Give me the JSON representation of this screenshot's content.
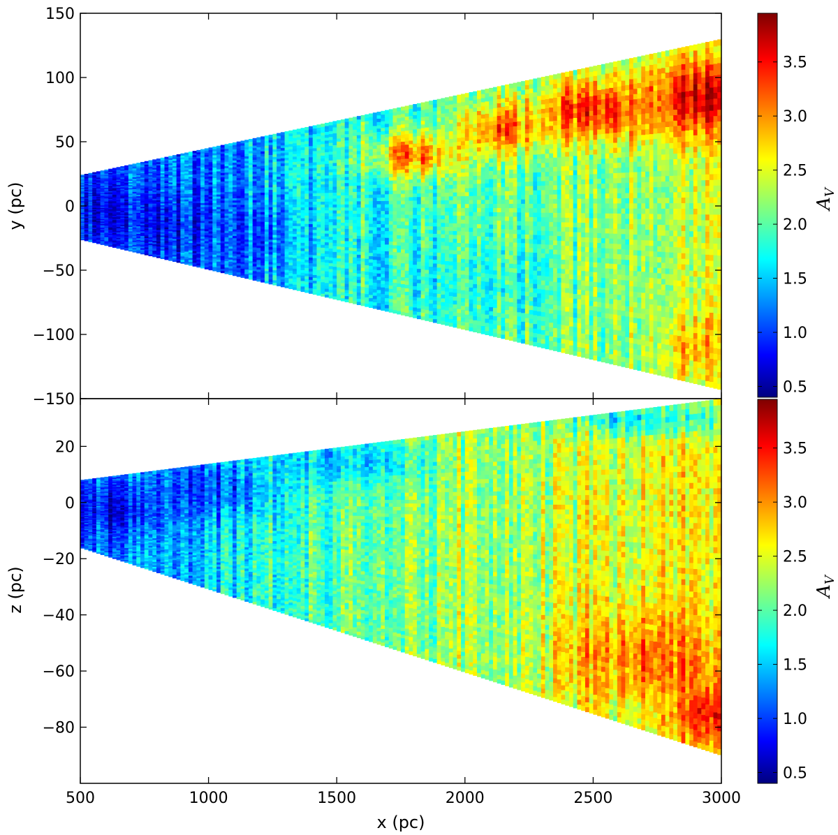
{
  "chart_data": [
    {
      "type": "heatmap",
      "panel": "top",
      "xlabel": "",
      "ylabel": "y (pc)",
      "xlim": [
        500,
        3000
      ],
      "ylim": [
        -150,
        150
      ],
      "xticks": [
        500,
        1000,
        1500,
        2000,
        2500,
        3000
      ],
      "yticks": [
        150,
        100,
        50,
        0,
        -50,
        -100,
        -150
      ],
      "ytick_labels": [
        "150",
        "100",
        "50",
        "0",
        "−50",
        "−100",
        "−150"
      ],
      "wedge": {
        "x": [
          500,
          3000
        ],
        "upper": [
          24,
          130
        ],
        "lower": [
          -26,
          -143
        ]
      },
      "zones": [
        {
          "x": 600,
          "y": -5,
          "value": 0.7,
          "sx": 140,
          "sy": 22
        },
        {
          "x": 850,
          "y": -15,
          "value": 0.8,
          "sx": 200,
          "sy": 25
        },
        {
          "x": 1150,
          "y": -25,
          "value": 1.2,
          "sx": 200,
          "sy": 30
        },
        {
          "x": 1800,
          "y": 40,
          "value": 3.1,
          "sx": 180,
          "sy": 18
        },
        {
          "x": 2150,
          "y": 60,
          "value": 3.2,
          "sx": 150,
          "sy": 20
        },
        {
          "x": 2500,
          "y": 75,
          "value": 3.4,
          "sx": 250,
          "sy": 25
        },
        {
          "x": 2900,
          "y": 85,
          "value": 3.6,
          "sx": 200,
          "sy": 30
        },
        {
          "x": 2000,
          "y": -60,
          "value": 1.8,
          "sx": 300,
          "sy": 30
        },
        {
          "x": 2900,
          "y": -110,
          "value": 2.8,
          "sx": 150,
          "sy": 25
        }
      ],
      "background": [
        {
          "x": 500,
          "value": 1.0
        },
        {
          "x": 1000,
          "value": 1.3
        },
        {
          "x": 1500,
          "value": 1.8
        },
        {
          "x": 2000,
          "value": 2.0
        },
        {
          "x": 2500,
          "value": 2.2
        },
        {
          "x": 3000,
          "value": 2.4
        }
      ],
      "colorbar": {
        "label": "A_V",
        "range": [
          0.4,
          3.95
        ],
        "ticks": [
          0.5,
          1.0,
          1.5,
          2.0,
          2.5,
          3.0,
          3.5
        ],
        "tick_labels": [
          "0.5",
          "1.0",
          "1.5",
          "2.0",
          "2.5",
          "3.0",
          "3.5"
        ],
        "colormap": "jet"
      }
    },
    {
      "type": "heatmap",
      "panel": "bottom",
      "xlabel": "x (pc)",
      "ylabel": "z (pc)",
      "xlim": [
        500,
        3000
      ],
      "ylim": [
        -100,
        37
      ],
      "xticks": [
        500,
        1000,
        1500,
        2000,
        2500,
        3000
      ],
      "xtick_labels": [
        "500",
        "1000",
        "1500",
        "2000",
        "2500",
        "3000"
      ],
      "yticks": [
        20,
        0,
        -20,
        -40,
        -60,
        -80
      ],
      "ytick_labels": [
        "20",
        "0",
        "−20",
        "−40",
        "−60",
        "−80"
      ],
      "wedge": {
        "x": [
          500,
          3000
        ],
        "upper": [
          8,
          37
        ],
        "lower": [
          -16,
          -90
        ]
      },
      "zones": [
        {
          "x": 650,
          "y": -2,
          "value": 0.8,
          "sx": 180,
          "sy": 9
        },
        {
          "x": 1000,
          "y": 5,
          "value": 1.1,
          "sx": 250,
          "sy": 10
        },
        {
          "x": 1500,
          "y": 15,
          "value": 1.5,
          "sx": 300,
          "sy": 8
        },
        {
          "x": 2700,
          "y": 30,
          "value": 1.7,
          "sx": 400,
          "sy": 6
        },
        {
          "x": 2700,
          "y": -55,
          "value": 3.1,
          "sx": 300,
          "sy": 15
        },
        {
          "x": 2950,
          "y": -75,
          "value": 3.5,
          "sx": 120,
          "sy": 10
        }
      ],
      "background": [
        {
          "x": 500,
          "value": 1.2
        },
        {
          "x": 1000,
          "value": 1.6
        },
        {
          "x": 1500,
          "value": 2.0
        },
        {
          "x": 2000,
          "value": 2.3
        },
        {
          "x": 2500,
          "value": 2.5
        },
        {
          "x": 3000,
          "value": 2.6
        }
      ],
      "colorbar": {
        "label": "A_V",
        "range": [
          0.4,
          3.95
        ],
        "ticks": [
          0.5,
          1.0,
          1.5,
          2.0,
          2.5,
          3.0,
          3.5
        ],
        "tick_labels": [
          "0.5",
          "1.0",
          "1.5",
          "2.0",
          "2.5",
          "3.0",
          "3.5"
        ],
        "colormap": "jet"
      }
    }
  ],
  "colors": {
    "background": "#ffffff",
    "axis": "#000000"
  }
}
